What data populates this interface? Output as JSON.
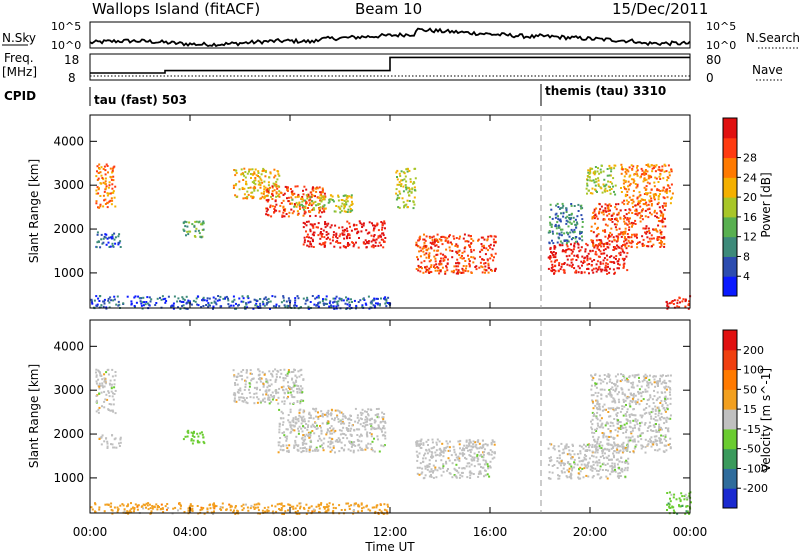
{
  "header": {
    "site": "Wallops Island (fitACF)",
    "beam": "Beam 10",
    "date": "15/Dec/2011"
  },
  "summary": {
    "nsky_label": "N.Sky",
    "nsearch_label": "N.Search",
    "freq_label_line1": "Freq.",
    "freq_label_line2": "[MHz]",
    "nave_label": "Nave",
    "cpid_label": "CPID",
    "log_tick_top": "10^5",
    "log_tick_bottom": "10^0",
    "freq_ticks": [
      "18",
      "8"
    ],
    "nave_ticks": [
      "80",
      "0"
    ],
    "cpid_segments": [
      {
        "label": "tau (fast) 503",
        "start_hour": 0
      },
      {
        "label": "themis (tau) 3310",
        "start_hour": 18
      }
    ]
  },
  "axes": {
    "xlabel": "Time UT",
    "ylabel": "Slant Range [km]",
    "x_ticks": [
      "00:00",
      "04:00",
      "08:00",
      "12:00",
      "16:00",
      "20:00",
      "00:00"
    ],
    "y_ticks": [
      "1000",
      "2000",
      "3000",
      "4000"
    ]
  },
  "chart_data": [
    {
      "type": "heatmap",
      "name": "power",
      "colorbar_label": "Power [dB]",
      "colorbar_ticks": [
        "4",
        "8",
        "12",
        "16",
        "20",
        "24",
        "28"
      ],
      "colors": [
        "#0a1aff",
        "#2c4cb0",
        "#3d8a7a",
        "#58b050",
        "#a8c628",
        "#f4b000",
        "#ff7a00",
        "#ff3a10",
        "#e01010"
      ],
      "xlim": [
        0,
        24
      ],
      "ylim": [
        200,
        4600
      ],
      "regions": [
        {
          "t0": 0.2,
          "t1": 1.0,
          "r0": 2500,
          "r1": 3500,
          "level": 6
        },
        {
          "t0": 0.2,
          "t1": 1.2,
          "r0": 1600,
          "r1": 2000,
          "level": 1
        },
        {
          "t0": 3.7,
          "t1": 4.6,
          "r0": 1800,
          "r1": 2200,
          "level": 3
        },
        {
          "t0": 5.7,
          "t1": 7.6,
          "r0": 2700,
          "r1": 3400,
          "level": 5
        },
        {
          "t0": 7.0,
          "t1": 9.4,
          "r0": 2300,
          "r1": 3000,
          "level": 7
        },
        {
          "t0": 8.5,
          "t1": 11.8,
          "r0": 1600,
          "r1": 2200,
          "level": 8
        },
        {
          "t0": 8.0,
          "t1": 10.5,
          "r0": 2400,
          "r1": 2800,
          "level": 4
        },
        {
          "t0": 12.2,
          "t1": 13.0,
          "r0": 2500,
          "r1": 3400,
          "level": 4
        },
        {
          "t0": 13.0,
          "t1": 16.2,
          "r0": 1000,
          "r1": 1900,
          "level": 7
        },
        {
          "t0": 18.3,
          "t1": 21.5,
          "r0": 1000,
          "r1": 1700,
          "level": 8
        },
        {
          "t0": 18.3,
          "t1": 19.7,
          "r0": 1700,
          "r1": 2600,
          "level": 2
        },
        {
          "t0": 20.0,
          "t1": 23.0,
          "r0": 1600,
          "r1": 2600,
          "level": 7
        },
        {
          "t0": 21.2,
          "t1": 23.3,
          "r0": 2600,
          "r1": 3500,
          "level": 6
        },
        {
          "t0": 19.8,
          "t1": 21.0,
          "r0": 2800,
          "r1": 3500,
          "level": 4
        },
        {
          "t0": 23.0,
          "t1": 24.0,
          "r0": 200,
          "r1": 500,
          "level": 8
        },
        {
          "t0": 0.0,
          "t1": 12.0,
          "r0": 200,
          "r1": 500,
          "level": 1
        }
      ]
    },
    {
      "type": "heatmap",
      "name": "velocity",
      "colorbar_label": "Velocity [m s^-1]",
      "colorbar_ticks": [
        "200",
        "100",
        "50",
        "15",
        "-15",
        "-50",
        "-100",
        "-200"
      ],
      "colors": [
        "#1a2ad0",
        "#2f6c9c",
        "#3a9a5c",
        "#6acc30",
        "#c0c0c0",
        "#f2a020",
        "#ff7a00",
        "#f04010",
        "#e01010"
      ],
      "xlim": [
        0,
        24
      ],
      "ylim": [
        200,
        4600
      ],
      "regions": [
        {
          "t0": 0.2,
          "t1": 1.0,
          "r0": 2500,
          "r1": 3500,
          "level": 4
        },
        {
          "t0": 0.3,
          "t1": 1.2,
          "r0": 1700,
          "r1": 2000,
          "level": 4
        },
        {
          "t0": 3.7,
          "t1": 4.6,
          "r0": 1800,
          "r1": 2100,
          "level": 3
        },
        {
          "t0": 5.7,
          "t1": 8.5,
          "r0": 2700,
          "r1": 3500,
          "level": 4
        },
        {
          "t0": 7.5,
          "t1": 11.8,
          "r0": 1600,
          "r1": 2600,
          "level": 4
        },
        {
          "t0": 13.0,
          "t1": 16.2,
          "r0": 1000,
          "r1": 1900,
          "level": 4
        },
        {
          "t0": 18.3,
          "t1": 21.5,
          "r0": 1000,
          "r1": 1800,
          "level": 4
        },
        {
          "t0": 20.0,
          "t1": 23.2,
          "r0": 1600,
          "r1": 3400,
          "level": 4
        },
        {
          "t0": 23.0,
          "t1": 24.0,
          "r0": 200,
          "r1": 700,
          "level": 3
        },
        {
          "t0": 0.0,
          "t1": 12.0,
          "r0": 200,
          "r1": 450,
          "level": 5
        }
      ]
    }
  ],
  "frequency_series": {
    "x": [
      0,
      3,
      12,
      24
    ],
    "y": [
      10.5,
      11.5,
      17.0,
      17.0
    ],
    "ylim": [
      8,
      18
    ]
  }
}
